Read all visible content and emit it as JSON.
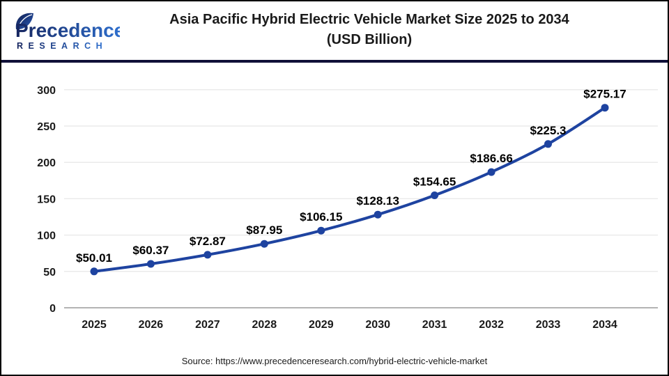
{
  "header": {
    "logo_name": "Precedence",
    "logo_sub": "RESEARCH",
    "title_line1": "Asia Pacific Hybrid Electric Vehicle Market Size 2025 to 2034",
    "title_line2": "(USD Billion)"
  },
  "chart_data": {
    "type": "line",
    "title": "Asia Pacific Hybrid Electric Vehicle Market Size 2025 to 2034 (USD Billion)",
    "categories": [
      "2025",
      "2026",
      "2027",
      "2028",
      "2029",
      "2030",
      "2031",
      "2032",
      "2033",
      "2034"
    ],
    "values": [
      50.01,
      60.37,
      72.87,
      87.95,
      106.15,
      128.13,
      154.65,
      186.66,
      225.3,
      275.17
    ],
    "point_labels": [
      "$50.01",
      "$60.37",
      "$72.87",
      "$87.95",
      "$106.15",
      "$128.13",
      "$154.65",
      "$186.66",
      "$225.3",
      "$275.17"
    ],
    "xlabel": "",
    "ylabel": "",
    "ylim": [
      0,
      300
    ],
    "yticks": [
      0,
      50,
      100,
      150,
      200,
      250,
      300
    ],
    "grid": true,
    "legend": "none",
    "colors": {
      "line": "#1e43a0",
      "marker": "#1e43a0",
      "gridline": "#e8e8e8",
      "zeroline": "#b3b3b3",
      "tick_text": "#1a1a1a",
      "label_text": "#000000"
    }
  },
  "footer": {
    "source": "Source: https://www.precedenceresearch.com/hybrid-electric-vehicle-market"
  },
  "brand": {
    "divider_color": "#101038",
    "logo_gradient_start": "#16255f",
    "logo_gradient_end": "#2f72d2"
  }
}
